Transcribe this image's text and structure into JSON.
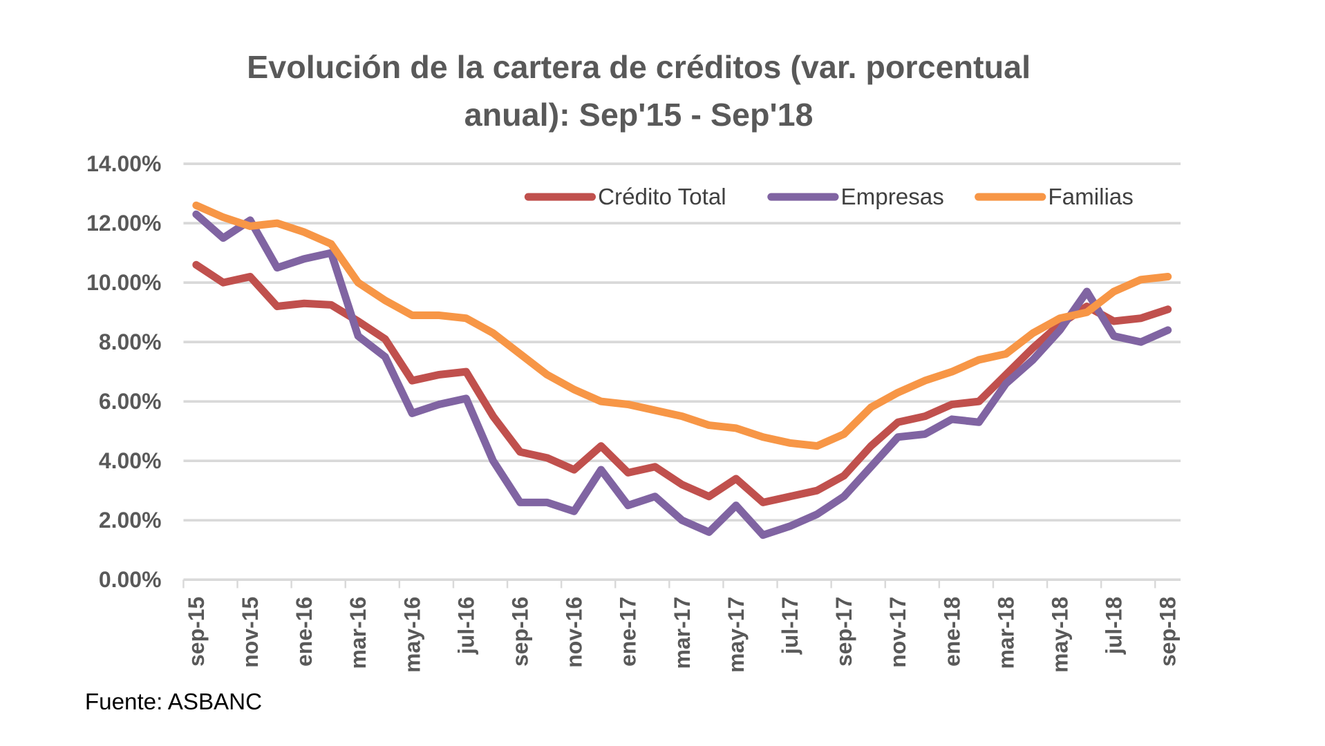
{
  "chart_data": {
    "type": "line",
    "title_line1": "Evolución de la cartera de créditos (var. porcentual",
    "title_line2": "anual): Sep'15 - Sep'18",
    "source": "Fuente: ASBANC",
    "xlabel": "",
    "ylabel": "",
    "ylim": [
      0,
      14
    ],
    "yticks": [
      "0.00%",
      "2.00%",
      "4.00%",
      "6.00%",
      "8.00%",
      "10.00%",
      "12.00%",
      "14.00%"
    ],
    "grid": true,
    "legend_position": "top-right",
    "x": [
      "sep-15",
      "oct-15",
      "nov-15",
      "dic-15",
      "ene-16",
      "feb-16",
      "mar-16",
      "abr-16",
      "may-16",
      "jun-16",
      "jul-16",
      "ago-16",
      "sep-16",
      "oct-16",
      "nov-16",
      "dic-16",
      "ene-17",
      "feb-17",
      "mar-17",
      "abr-17",
      "may-17",
      "jun-17",
      "jul-17",
      "ago-17",
      "sep-17",
      "oct-17",
      "nov-17",
      "dic-17",
      "ene-18",
      "feb-18",
      "mar-18",
      "abr-18",
      "may-18",
      "jun-18",
      "jul-18",
      "ago-18",
      "sep-18"
    ],
    "xtick_labels": [
      "sep-15",
      "nov-15",
      "ene-16",
      "mar-16",
      "may-16",
      "jul-16",
      "sep-16",
      "nov-16",
      "ene-17",
      "mar-17",
      "may-17",
      "jul-17",
      "sep-17",
      "nov-17",
      "ene-18",
      "mar-18",
      "may-18",
      "jul-18",
      "sep-18"
    ],
    "series": [
      {
        "name": "Crédito Total",
        "color": "#C0504D",
        "values": [
          10.6,
          10.0,
          10.2,
          9.2,
          9.3,
          9.25,
          8.7,
          8.1,
          6.7,
          6.9,
          7.0,
          5.5,
          4.3,
          4.1,
          3.7,
          4.5,
          3.6,
          3.8,
          3.2,
          2.8,
          3.4,
          2.6,
          2.8,
          3.0,
          3.5,
          4.5,
          5.3,
          5.5,
          5.9,
          6.0,
          6.9,
          7.8,
          8.6,
          9.2,
          8.7,
          8.8,
          9.1
        ]
      },
      {
        "name": "Empresas",
        "color": "#8064A2",
        "values": [
          12.3,
          11.5,
          12.1,
          10.5,
          10.8,
          11.0,
          8.2,
          7.5,
          5.6,
          5.9,
          6.1,
          4.0,
          2.6,
          2.6,
          2.3,
          3.7,
          2.5,
          2.8,
          2.0,
          1.6,
          2.5,
          1.5,
          1.8,
          2.2,
          2.8,
          3.8,
          4.8,
          4.9,
          5.4,
          5.3,
          6.6,
          7.4,
          8.4,
          9.7,
          8.2,
          8.0,
          8.4
        ]
      },
      {
        "name": "Familias",
        "color": "#F79646",
        "values": [
          12.6,
          12.2,
          11.9,
          12.0,
          11.7,
          11.3,
          10.0,
          9.4,
          8.9,
          8.9,
          8.8,
          8.3,
          7.6,
          6.9,
          6.4,
          6.0,
          5.9,
          5.7,
          5.5,
          5.2,
          5.1,
          4.8,
          4.6,
          4.5,
          4.9,
          5.8,
          6.3,
          6.7,
          7.0,
          7.4,
          7.6,
          8.3,
          8.8,
          9.0,
          9.7,
          10.1,
          10.2
        ]
      }
    ]
  }
}
